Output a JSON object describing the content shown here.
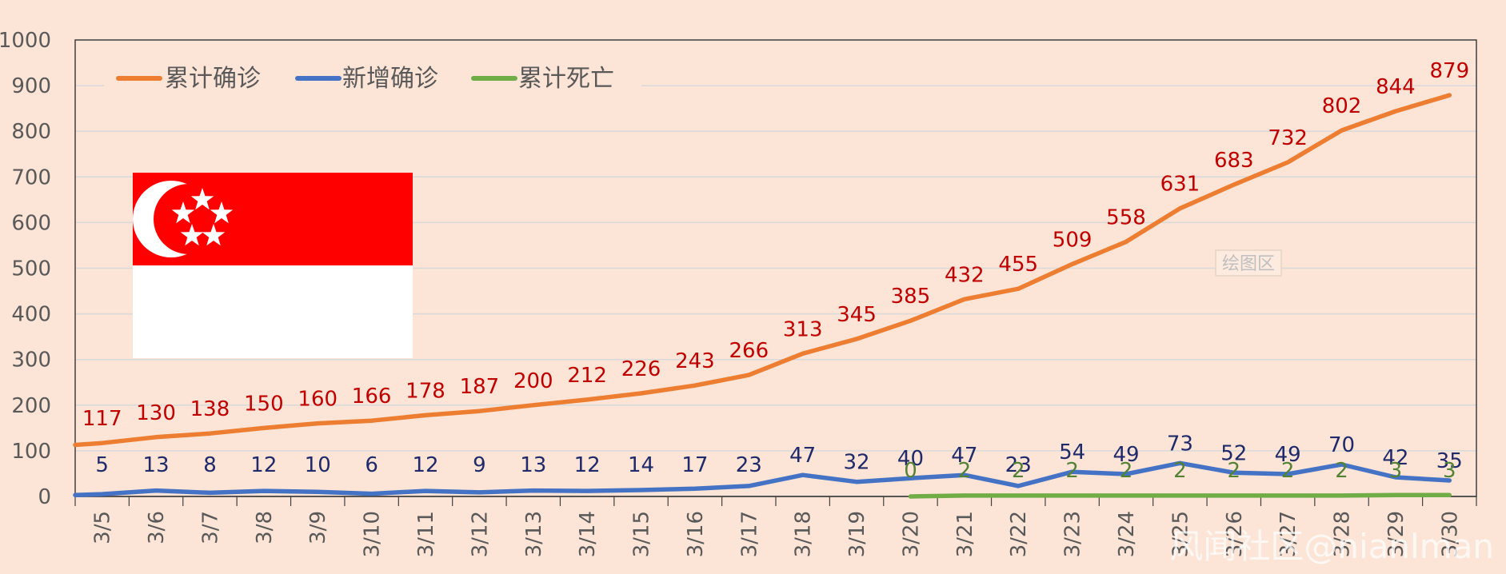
{
  "chart_data": {
    "type": "line",
    "x": [
      "3/5",
      "3/6",
      "3/7",
      "3/8",
      "3/9",
      "3/10",
      "3/11",
      "3/12",
      "3/13",
      "3/14",
      "3/15",
      "3/16",
      "3/17",
      "3/18",
      "3/19",
      "3/20",
      "3/21",
      "3/22",
      "3/23",
      "3/24",
      "3/25",
      "3/26",
      "3/27",
      "3/28",
      "3/29",
      "3/30"
    ],
    "series": [
      {
        "name": "累计确诊",
        "color": "#ed7d31",
        "label_color": "#c00000",
        "values": [
          117,
          130,
          138,
          150,
          160,
          166,
          178,
          187,
          200,
          212,
          226,
          243,
          266,
          313,
          345,
          385,
          432,
          455,
          509,
          558,
          631,
          683,
          732,
          802,
          844,
          879
        ]
      },
      {
        "name": "新增确诊",
        "color": "#4472c4",
        "label_color": "#1f2a6b",
        "values": [
          5,
          13,
          8,
          12,
          10,
          6,
          12,
          9,
          13,
          12,
          14,
          17,
          23,
          47,
          32,
          40,
          47,
          23,
          54,
          49,
          73,
          52,
          49,
          70,
          42,
          35
        ]
      },
      {
        "name": "累计死亡",
        "color": "#70ad47",
        "label_color": "#548235",
        "values": [
          null,
          null,
          null,
          null,
          null,
          null,
          null,
          null,
          null,
          null,
          null,
          null,
          null,
          null,
          null,
          0,
          2,
          2,
          2,
          2,
          2,
          2,
          2,
          2,
          3,
          3
        ]
      }
    ],
    "ylim": [
      0,
      1000
    ],
    "yticks": [
      0,
      100,
      200,
      300,
      400,
      500,
      600,
      700,
      800,
      900,
      1000
    ],
    "grid": true,
    "legend": "top-left",
    "title": "",
    "xlabel": "",
    "ylabel": ""
  },
  "overlay": {
    "plot_area_label": "绘图区",
    "watermark": "风闻社区@nianlman",
    "flag_icon": "singapore-flag-icon",
    "background_color": "#fce4d6"
  }
}
